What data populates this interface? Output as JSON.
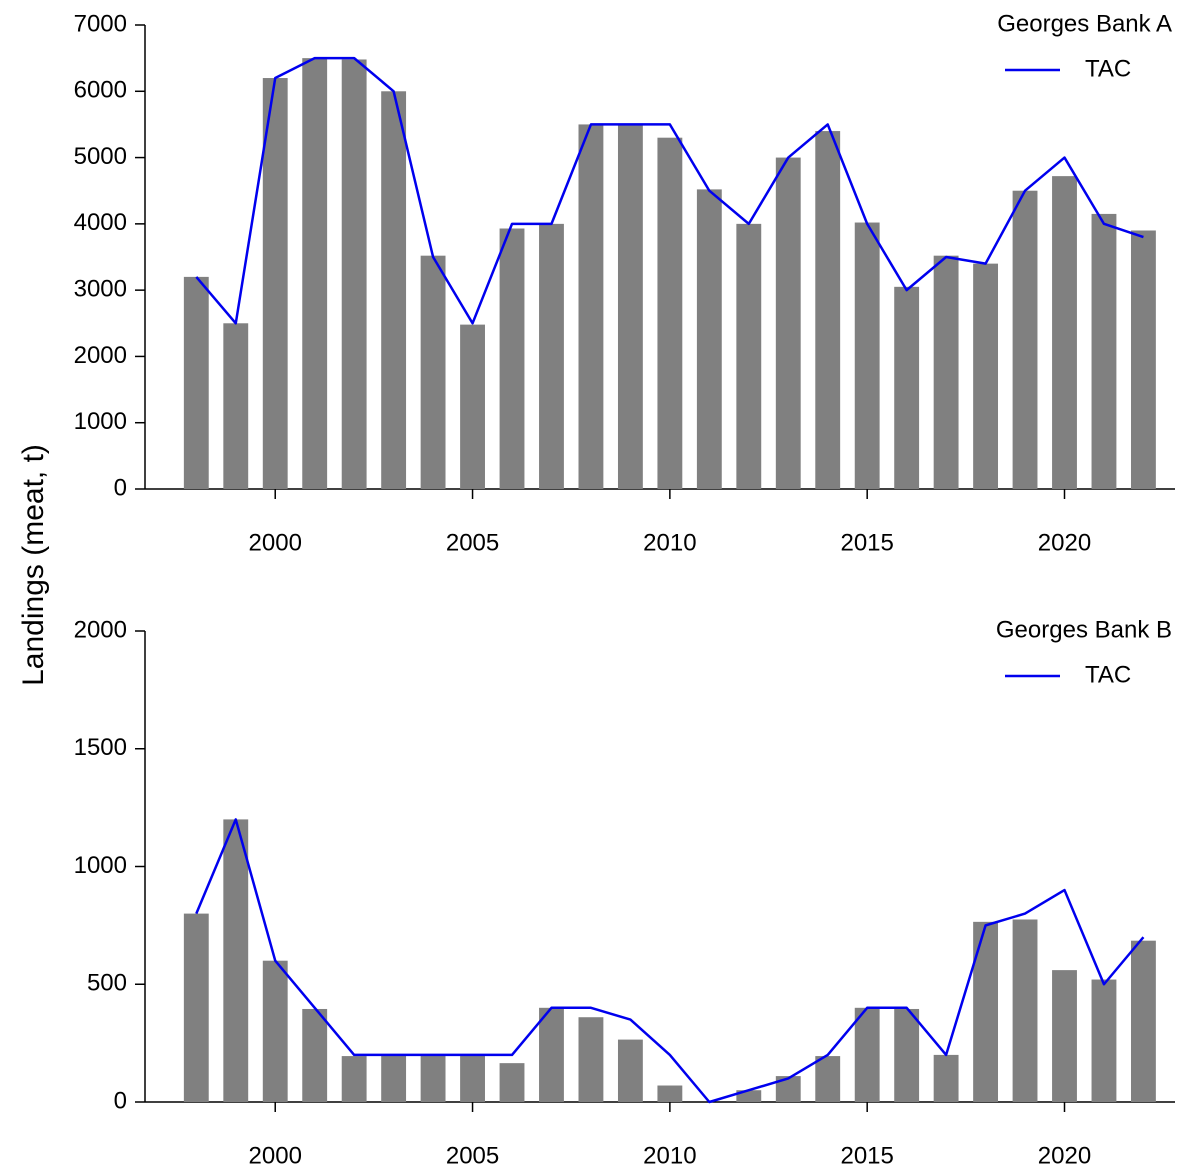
{
  "ylabel": "Landings (meat, t)",
  "chart_data": [
    {
      "type": "bar",
      "title": "Georges Bank A",
      "x": [
        1998,
        1999,
        2000,
        2001,
        2002,
        2003,
        2004,
        2005,
        2006,
        2007,
        2008,
        2009,
        2010,
        2011,
        2012,
        2013,
        2014,
        2015,
        2016,
        2017,
        2018,
        2019,
        2020,
        2021,
        2022
      ],
      "series": [
        {
          "type": "bar",
          "color": "#808080",
          "values": [
            3200,
            2500,
            6200,
            6500,
            6480,
            6000,
            3520,
            2480,
            3930,
            4000,
            5500,
            5500,
            5300,
            4520,
            4000,
            5000,
            5400,
            4020,
            3050,
            3520,
            3400,
            4500,
            4720,
            4150,
            3900
          ]
        },
        {
          "type": "line",
          "name": "TAC",
          "color": "#0000ee",
          "values": [
            3200,
            2500,
            6200,
            6500,
            6500,
            6000,
            3500,
            2500,
            4000,
            4000,
            5500,
            5500,
            5500,
            4500,
            4000,
            5000,
            5500,
            4000,
            3000,
            3500,
            3400,
            4500,
            5000,
            4000,
            3800
          ]
        }
      ],
      "xlim": [
        1996.7,
        2022.8
      ],
      "xticks": [
        2000,
        2005,
        2010,
        2015,
        2020
      ],
      "ylim": [
        0,
        7000
      ],
      "yticks": [
        0,
        1000,
        2000,
        3000,
        4000,
        5000,
        6000,
        7000
      ]
    },
    {
      "type": "bar",
      "title": "Georges Bank B",
      "x": [
        1998,
        1999,
        2000,
        2001,
        2002,
        2003,
        2004,
        2005,
        2006,
        2007,
        2008,
        2009,
        2010,
        2011,
        2012,
        2013,
        2014,
        2015,
        2016,
        2017,
        2018,
        2019,
        2020,
        2021,
        2022
      ],
      "series": [
        {
          "type": "bar",
          "color": "#808080",
          "values": [
            800,
            1200,
            600,
            395,
            195,
            200,
            200,
            200,
            165,
            400,
            360,
            265,
            70,
            0,
            50,
            110,
            195,
            400,
            395,
            200,
            765,
            775,
            560,
            520,
            685
          ]
        },
        {
          "type": "line",
          "name": "TAC",
          "color": "#0000ee",
          "values": [
            800,
            1200,
            600,
            400,
            200,
            200,
            200,
            200,
            200,
            400,
            400,
            350,
            200,
            0,
            50,
            100,
            200,
            400,
            400,
            200,
            750,
            800,
            900,
            500,
            700
          ]
        }
      ],
      "xlim": [
        1996.7,
        2022.8
      ],
      "xticks": [
        2000,
        2005,
        2010,
        2015,
        2020
      ],
      "ylim": [
        0,
        2000
      ],
      "yticks": [
        0,
        500,
        1000,
        1500,
        2000
      ]
    }
  ]
}
